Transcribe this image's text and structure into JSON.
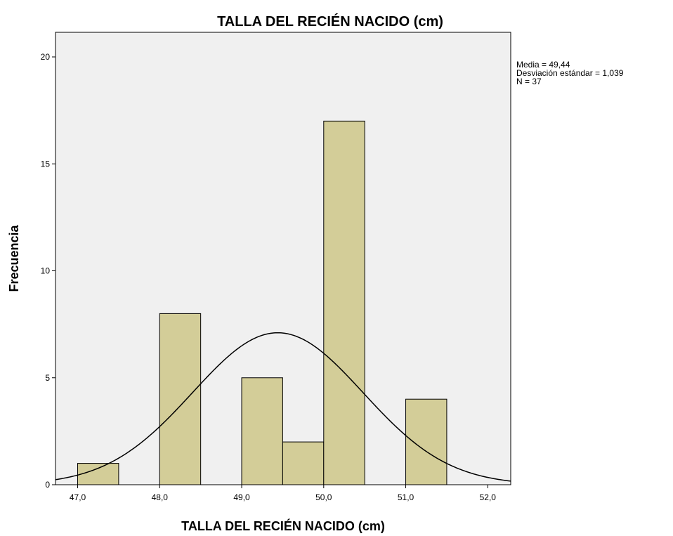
{
  "chart_data": {
    "type": "histogram",
    "title": "TALLA DEL RECIÉN NACIDO (cm)",
    "xlabel": "TALLA DEL RECIÉN NACIDO (cm)",
    "ylabel": "Frecuencia",
    "bins": [
      47,
      47.5,
      48,
      48.5,
      49,
      49.5,
      50,
      50.5,
      51,
      51.5
    ],
    "values": [
      1,
      0,
      8,
      0,
      5,
      2,
      17,
      0,
      4
    ],
    "color": "#d3cd98",
    "xlim": [
      46.73,
      52.28
    ],
    "ylim": [
      0,
      21.15
    ],
    "xticks": [
      {
        "value": 47,
        "label": "47,0"
      },
      {
        "value": 48,
        "label": "48,0"
      },
      {
        "value": 49,
        "label": "49,0"
      },
      {
        "value": 50,
        "label": "50,0"
      },
      {
        "value": 51,
        "label": "51,0"
      },
      {
        "value": 52,
        "label": "52,0"
      }
    ],
    "yticks": [
      0,
      5,
      10,
      15,
      20
    ],
    "normal_curve": true,
    "stats": [
      {
        "value": 49.44,
        "label": "Media = 49,44"
      },
      {
        "value": 1.039,
        "label": "Desviación estándar = 1,039"
      },
      {
        "value": 37,
        "label": "N = 37"
      }
    ]
  }
}
